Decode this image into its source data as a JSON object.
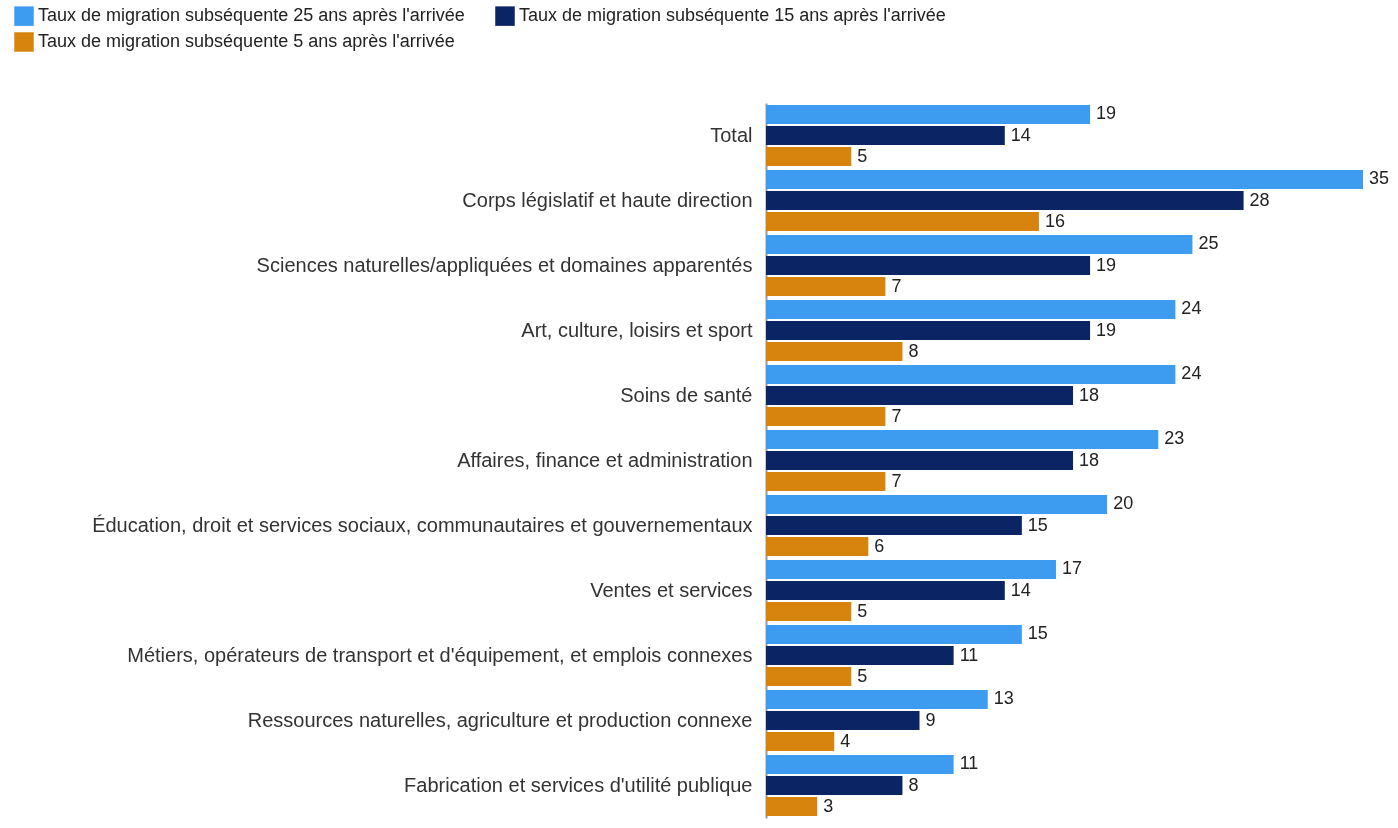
{
  "chart_data": {
    "type": "bar",
    "orientation": "horizontal",
    "legend": "top left",
    "data_labels": true,
    "categories": [
      "Total",
      "Corps législatif et haute direction",
      "Sciences naturelles/appliquées et domaines apparentés",
      "Art, culture, loisirs et sport",
      "Soins de santé",
      "Affaires, finance et administration",
      "Éducation, droit et services sociaux, communautaires et gouvernementaux",
      "Ventes et services",
      "Métiers, opérateurs de transport et d'équipement, et emplois connexes",
      "Ressources naturelles, agriculture et production connexe",
      "Fabrication et services d'utilité publique"
    ],
    "series": [
      {
        "name": "Taux de migration subséquente 25 ans après l'arrivée",
        "color": "#3d9bf0",
        "values": [
          19,
          35,
          25,
          24,
          24,
          23,
          20,
          17,
          15,
          13,
          11
        ]
      },
      {
        "name": "Taux de migration subséquente 15 ans après l'arrivée",
        "color": "#0b2463",
        "values": [
          14,
          28,
          19,
          19,
          18,
          18,
          15,
          14,
          11,
          9,
          8
        ]
      },
      {
        "name": "Taux de migration subséquente 5 ans après l'arrivée",
        "color": "#d6840e",
        "values": [
          5,
          16,
          7,
          8,
          7,
          7,
          6,
          5,
          5,
          4,
          3
        ]
      }
    ]
  }
}
